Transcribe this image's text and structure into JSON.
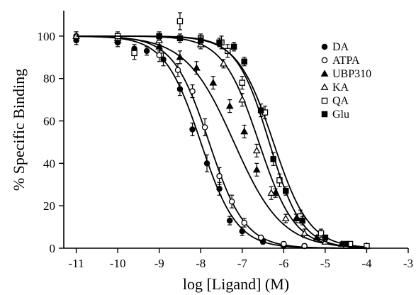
{
  "chart_data": {
    "type": "scatter",
    "xlabel": "log [Ligand] (M)",
    "ylabel": "% Specific Binding",
    "xlim": [
      -11.3,
      -3
    ],
    "ylim": [
      0,
      112
    ],
    "xticks": [
      -11,
      -10,
      -9,
      -8,
      -7,
      -6,
      -5,
      -4,
      -3
    ],
    "yticks": [
      0,
      20,
      40,
      60,
      80,
      100
    ],
    "legend_position": "right",
    "series": [
      {
        "name": "DA",
        "marker": "filled-circle",
        "curve_logIC50": -8.0,
        "curve_hill": 1.0,
        "points": [
          {
            "x": -11.0,
            "y": 98,
            "err": 2
          },
          {
            "x": -10.0,
            "y": 97,
            "err": 2
          },
          {
            "x": -9.6,
            "y": 94,
            "err": 2
          },
          {
            "x": -9.3,
            "y": 93,
            "err": 2
          },
          {
            "x": -8.9,
            "y": 89,
            "err": 3
          },
          {
            "x": -8.5,
            "y": 75,
            "err": 3
          },
          {
            "x": -8.2,
            "y": 56,
            "err": 3
          },
          {
            "x": -7.85,
            "y": 40,
            "err": 4
          },
          {
            "x": -7.55,
            "y": 28,
            "err": 3
          },
          {
            "x": -7.3,
            "y": 13,
            "err": 2
          },
          {
            "x": -7.0,
            "y": 8,
            "err": 2
          },
          {
            "x": -6.5,
            "y": 3,
            "err": 1
          },
          {
            "x": -6.0,
            "y": 1,
            "err": 1
          },
          {
            "x": -5.5,
            "y": 1,
            "err": 1
          }
        ]
      },
      {
        "name": "ATPA",
        "marker": "open-circle",
        "curve_logIC50": -7.8,
        "curve_hill": 1.0,
        "points": [
          {
            "x": -11.0,
            "y": 100,
            "err": 2
          },
          {
            "x": -10.0,
            "y": 98,
            "err": 2
          },
          {
            "x": -9.0,
            "y": 91,
            "err": 3
          },
          {
            "x": -8.55,
            "y": 84,
            "err": 3
          },
          {
            "x": -8.2,
            "y": 74,
            "err": 3
          },
          {
            "x": -7.9,
            "y": 57,
            "err": 4
          },
          {
            "x": -7.55,
            "y": 34,
            "err": 4
          },
          {
            "x": -7.25,
            "y": 22,
            "err": 3
          },
          {
            "x": -6.95,
            "y": 12,
            "err": 2
          },
          {
            "x": -6.55,
            "y": 5,
            "err": 1
          },
          {
            "x": -6.0,
            "y": 2,
            "err": 1
          },
          {
            "x": -5.5,
            "y": 1,
            "err": 1
          }
        ]
      },
      {
        "name": "UBP310",
        "marker": "filled-triangle",
        "curve_logIC50": -7.2,
        "curve_hill": 0.75,
        "points": [
          {
            "x": -10.0,
            "y": 98,
            "err": 2
          },
          {
            "x": -9.0,
            "y": 95,
            "err": 2
          },
          {
            "x": -8.5,
            "y": 90,
            "err": 3
          },
          {
            "x": -8.1,
            "y": 85,
            "err": 3
          },
          {
            "x": -7.7,
            "y": 78,
            "err": 3
          },
          {
            "x": -7.3,
            "y": 67,
            "err": 3
          },
          {
            "x": -6.95,
            "y": 55,
            "err": 3
          },
          {
            "x": -6.65,
            "y": 37,
            "err": 3
          },
          {
            "x": -6.2,
            "y": 26,
            "err": 2
          },
          {
            "x": -5.7,
            "y": 14,
            "err": 2
          },
          {
            "x": -5.2,
            "y": 5,
            "err": 1
          },
          {
            "x": -4.6,
            "y": 2,
            "err": 1
          },
          {
            "x": -4.0,
            "y": 1,
            "err": 1
          }
        ]
      },
      {
        "name": "KA",
        "marker": "open-triangle",
        "curve_logIC50": -6.6,
        "curve_hill": 1.0,
        "points": [
          {
            "x": -11.0,
            "y": 100,
            "err": 2
          },
          {
            "x": -10.0,
            "y": 99,
            "err": 2
          },
          {
            "x": -9.0,
            "y": 98,
            "err": 2
          },
          {
            "x": -8.0,
            "y": 96,
            "err": 2
          },
          {
            "x": -7.45,
            "y": 87,
            "err": 2
          },
          {
            "x": -7.0,
            "y": 70,
            "err": 3
          },
          {
            "x": -6.65,
            "y": 46,
            "err": 3
          },
          {
            "x": -6.3,
            "y": 26,
            "err": 3
          },
          {
            "x": -5.95,
            "y": 14,
            "err": 2
          },
          {
            "x": -5.5,
            "y": 7,
            "err": 2
          },
          {
            "x": -5.0,
            "y": 3,
            "err": 1
          },
          {
            "x": -4.5,
            "y": 1,
            "err": 1
          }
        ]
      },
      {
        "name": "QA",
        "marker": "open-square",
        "curve_logIC50": -6.25,
        "curve_hill": 1.0,
        "points": [
          {
            "x": -10.0,
            "y": 100,
            "err": 2
          },
          {
            "x": -9.6,
            "y": 92,
            "err": 3
          },
          {
            "x": -8.5,
            "y": 107,
            "err": 4
          },
          {
            "x": -8.0,
            "y": 99,
            "err": 2
          },
          {
            "x": -7.5,
            "y": 97,
            "err": 3
          },
          {
            "x": -7.35,
            "y": 93,
            "err": 3
          },
          {
            "x": -7.0,
            "y": 78,
            "err": 3
          },
          {
            "x": -6.45,
            "y": 64,
            "err": 3
          },
          {
            "x": -6.1,
            "y": 32,
            "err": 3
          },
          {
            "x": -5.6,
            "y": 15,
            "err": 3
          },
          {
            "x": -5.1,
            "y": 7,
            "err": 2
          },
          {
            "x": -4.4,
            "y": 2,
            "err": 1
          },
          {
            "x": -4.0,
            "y": 1,
            "err": 1
          }
        ]
      },
      {
        "name": "Glu",
        "marker": "filled-square",
        "curve_logIC50": -6.35,
        "curve_hill": 1.1,
        "points": [
          {
            "x": -9.0,
            "y": 100,
            "err": 2
          },
          {
            "x": -8.5,
            "y": 99,
            "err": 2
          },
          {
            "x": -8.0,
            "y": 98,
            "err": 2
          },
          {
            "x": -7.55,
            "y": 97,
            "err": 2
          },
          {
            "x": -7.2,
            "y": 95,
            "err": 2
          },
          {
            "x": -6.95,
            "y": 88,
            "err": 2
          },
          {
            "x": -6.55,
            "y": 65,
            "err": 3
          },
          {
            "x": -6.25,
            "y": 42,
            "err": 3
          },
          {
            "x": -5.95,
            "y": 27,
            "err": 2
          },
          {
            "x": -5.55,
            "y": 13,
            "err": 2
          },
          {
            "x": -5.0,
            "y": 5,
            "err": 1
          },
          {
            "x": -4.5,
            "y": 2,
            "err": 1
          }
        ]
      }
    ]
  }
}
